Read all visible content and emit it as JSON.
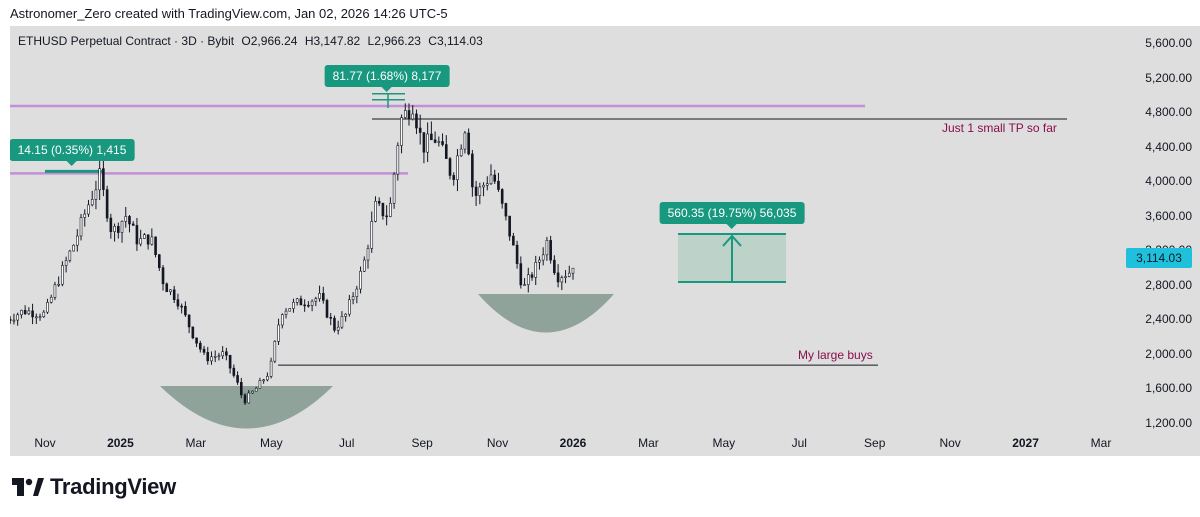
{
  "header": {
    "caption": "Astronomer_Zero created with TradingView.com, Jan 02, 2026 14:26 UTC-5"
  },
  "legend": {
    "symbol": "ETHUSD Perpetual Contract · 3D · Bybit",
    "open": "O2,966.24",
    "high": "H3,147.82",
    "low": "L2,966.23",
    "close": "C3,114.03"
  },
  "chart_data": {
    "type": "candlestick",
    "symbol": "ETHUSD",
    "y_ticks": [
      "5,600.00",
      "5,200.00",
      "4,800.00",
      "4,400.00",
      "4,000.00",
      "3,600.00",
      "3,200.00",
      "2,800.00",
      "2,400.00",
      "2,000.00",
      "1,600.00",
      "1,200.00"
    ],
    "ylim": [
      1200,
      5600
    ],
    "x_ticks": [
      {
        "label": "Nov",
        "bold": false
      },
      {
        "label": "2025",
        "bold": true
      },
      {
        "label": "Mar",
        "bold": false
      },
      {
        "label": "May",
        "bold": false
      },
      {
        "label": "Jul",
        "bold": false
      },
      {
        "label": "Sep",
        "bold": false
      },
      {
        "label": "Nov",
        "bold": false
      },
      {
        "label": "2026",
        "bold": true
      },
      {
        "label": "Mar",
        "bold": false
      },
      {
        "label": "May",
        "bold": false
      },
      {
        "label": "Jul",
        "bold": false
      },
      {
        "label": "Sep",
        "bold": false
      },
      {
        "label": "Nov",
        "bold": false
      },
      {
        "label": "2027",
        "bold": true
      },
      {
        "label": "Mar",
        "bold": false
      }
    ],
    "series_path": [
      [
        "2024-10-01",
        2400
      ],
      [
        "2024-10-15",
        2500
      ],
      [
        "2024-11-01",
        2460
      ],
      [
        "2024-11-10",
        2800
      ],
      [
        "2024-11-25",
        3300
      ],
      [
        "2024-12-05",
        3700
      ],
      [
        "2024-12-15",
        4050
      ],
      [
        "2024-12-25",
        3400
      ],
      [
        "2025-01-05",
        3600
      ],
      [
        "2025-01-15",
        3300
      ],
      [
        "2025-01-25",
        3350
      ],
      [
        "2025-02-05",
        2800
      ],
      [
        "2025-02-15",
        2650
      ],
      [
        "2025-03-01",
        2200
      ],
      [
        "2025-03-10",
        1950
      ],
      [
        "2025-03-25",
        2000
      ],
      [
        "2025-04-05",
        1650
      ],
      [
        "2025-04-10",
        1450
      ],
      [
        "2025-04-20",
        1600
      ],
      [
        "2025-05-01",
        1800
      ],
      [
        "2025-05-10",
        2500
      ],
      [
        "2025-05-25",
        2600
      ],
      [
        "2025-06-10",
        2650
      ],
      [
        "2025-06-22",
        2300
      ],
      [
        "2025-07-01",
        2450
      ],
      [
        "2025-07-15",
        3000
      ],
      [
        "2025-07-25",
        3700
      ],
      [
        "2025-08-05",
        3600
      ],
      [
        "2025-08-14",
        4700
      ],
      [
        "2025-08-24",
        4900
      ],
      [
        "2025-09-01",
        4400
      ],
      [
        "2025-09-12",
        4500
      ],
      [
        "2025-09-25",
        4050
      ],
      [
        "2025-10-06",
        4700
      ],
      [
        "2025-10-12",
        3800
      ],
      [
        "2025-10-27",
        4100
      ],
      [
        "2025-11-10",
        3400
      ],
      [
        "2025-11-21",
        2750
      ],
      [
        "2025-12-01",
        3000
      ],
      [
        "2025-12-10",
        3300
      ],
      [
        "2025-12-18",
        2900
      ],
      [
        "2025-12-28",
        2950
      ],
      [
        "2026-01-02",
        3114.03
      ]
    ],
    "last_close": "3,114.03",
    "annotations": {
      "measure_left": "14.15 (0.35%) 1,415",
      "measure_top": "81.77 (1.68%) 8,177",
      "measure_target": "560.35 (19.75%) 56,035",
      "note_tp": "Just 1 small TP so far",
      "note_buys": "My large buys"
    },
    "levels": {
      "tp_line": 4720,
      "buy_line": 1870,
      "resistance_high": 4870,
      "resistance_low": 4090
    },
    "colors": {
      "up": "#2a2e39",
      "down": "#131722",
      "resistance": "#c38fd6",
      "accent": "#17987f",
      "arc": "#8fa39b",
      "target_fill": "#b7d1c6",
      "background": "#dedede"
    }
  },
  "brand": {
    "name": "TradingView"
  }
}
